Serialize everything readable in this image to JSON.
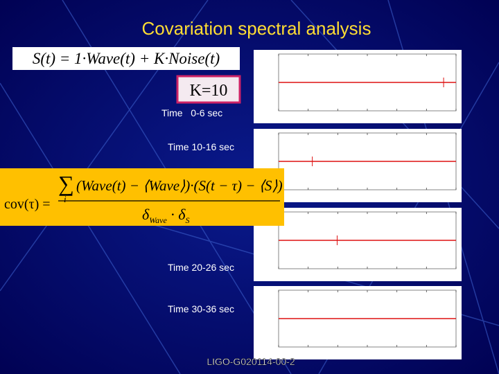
{
  "title": "Covariation spectral analysis",
  "formula": "S(t) = 1·Wave(t) + K·Noise(t)",
  "k_label": "K=10",
  "time_labels": [
    "Time   0-6 sec",
    "Time 10-16 sec",
    "Time 20-26 sec",
    "Time 30-36 sec"
  ],
  "cov_formula": {
    "lhs": "cov(τ) =",
    "sum": "∑",
    "index": "i",
    "numerator": "(Wave(t) − ⟨Wave⟩)·(S(t − τ) − ⟨S⟩)",
    "delta": "δ",
    "wave_sub": "Wave",
    "dot": " · ",
    "s_sub": "S"
  },
  "footer": "LIGO-G020114-00-2"
}
